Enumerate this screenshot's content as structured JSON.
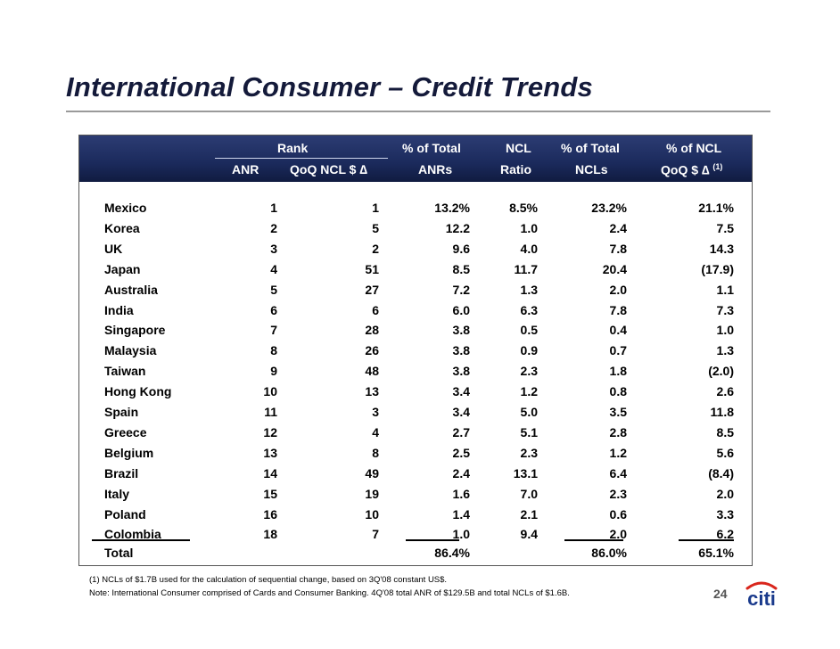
{
  "title": "International Consumer – Credit Trends",
  "header": {
    "rank": "Rank",
    "anr": "ANR",
    "qoq_ncl": "QoQ NCL $ ∆",
    "pct_total_anr_1": "% of Total",
    "pct_total_anr_2": "ANRs",
    "ncl_ratio_1": "NCL",
    "ncl_ratio_2": "Ratio",
    "pct_total_ncl_1": "% of Total",
    "pct_total_ncl_2": "NCLs",
    "pct_ncl_qoq_1": "% of NCL",
    "pct_ncl_qoq_2": "QoQ $ ∆",
    "pct_ncl_qoq_sup": "(1)"
  },
  "rows": [
    {
      "country": "Mexico",
      "anr_rank": "1",
      "qoq_rank": "1",
      "pct_anr": "13.2%",
      "ncl_ratio": "8.5%",
      "pct_ncl": "23.2%",
      "qoq_pct": "21.1%"
    },
    {
      "country": "Korea",
      "anr_rank": "2",
      "qoq_rank": "5",
      "pct_anr": "12.2",
      "ncl_ratio": "1.0",
      "pct_ncl": "2.4",
      "qoq_pct": "7.5"
    },
    {
      "country": "UK",
      "anr_rank": "3",
      "qoq_rank": "2",
      "pct_anr": "9.6",
      "ncl_ratio": "4.0",
      "pct_ncl": "7.8",
      "qoq_pct": "14.3"
    },
    {
      "country": "Japan",
      "anr_rank": "4",
      "qoq_rank": "51",
      "pct_anr": "8.5",
      "ncl_ratio": "11.7",
      "pct_ncl": "20.4",
      "qoq_pct": "(17.9)"
    },
    {
      "country": "Australia",
      "anr_rank": "5",
      "qoq_rank": "27",
      "pct_anr": "7.2",
      "ncl_ratio": "1.3",
      "pct_ncl": "2.0",
      "qoq_pct": "1.1"
    },
    {
      "country": "India",
      "anr_rank": "6",
      "qoq_rank": "6",
      "pct_anr": "6.0",
      "ncl_ratio": "6.3",
      "pct_ncl": "7.8",
      "qoq_pct": "7.3"
    },
    {
      "country": "Singapore",
      "anr_rank": "7",
      "qoq_rank": "28",
      "pct_anr": "3.8",
      "ncl_ratio": "0.5",
      "pct_ncl": "0.4",
      "qoq_pct": "1.0"
    },
    {
      "country": "Malaysia",
      "anr_rank": "8",
      "qoq_rank": "26",
      "pct_anr": "3.8",
      "ncl_ratio": "0.9",
      "pct_ncl": "0.7",
      "qoq_pct": "1.3"
    },
    {
      "country": "Taiwan",
      "anr_rank": "9",
      "qoq_rank": "48",
      "pct_anr": "3.8",
      "ncl_ratio": "2.3",
      "pct_ncl": "1.8",
      "qoq_pct": "(2.0)"
    },
    {
      "country": "Hong Kong",
      "anr_rank": "10",
      "qoq_rank": "13",
      "pct_anr": "3.4",
      "ncl_ratio": "1.2",
      "pct_ncl": "0.8",
      "qoq_pct": "2.6"
    },
    {
      "country": "Spain",
      "anr_rank": "11",
      "qoq_rank": "3",
      "pct_anr": "3.4",
      "ncl_ratio": "5.0",
      "pct_ncl": "3.5",
      "qoq_pct": "11.8"
    },
    {
      "country": "Greece",
      "anr_rank": "12",
      "qoq_rank": "4",
      "pct_anr": "2.7",
      "ncl_ratio": "5.1",
      "pct_ncl": "2.8",
      "qoq_pct": "8.5"
    },
    {
      "country": "Belgium",
      "anr_rank": "13",
      "qoq_rank": "8",
      "pct_anr": "2.5",
      "ncl_ratio": "2.3",
      "pct_ncl": "1.2",
      "qoq_pct": "5.6"
    },
    {
      "country": "Brazil",
      "anr_rank": "14",
      "qoq_rank": "49",
      "pct_anr": "2.4",
      "ncl_ratio": "13.1",
      "pct_ncl": "6.4",
      "qoq_pct": "(8.4)"
    },
    {
      "country": "Italy",
      "anr_rank": "15",
      "qoq_rank": "19",
      "pct_anr": "1.6",
      "ncl_ratio": "7.0",
      "pct_ncl": "2.3",
      "qoq_pct": "2.0"
    },
    {
      "country": "Poland",
      "anr_rank": "16",
      "qoq_rank": "10",
      "pct_anr": "1.4",
      "ncl_ratio": "2.1",
      "pct_ncl": "0.6",
      "qoq_pct": "3.3"
    },
    {
      "country": "Colombia",
      "anr_rank": "18",
      "qoq_rank": "7",
      "pct_anr": "1.0",
      "ncl_ratio": "9.4",
      "pct_ncl": "2.0",
      "qoq_pct": "6.2"
    }
  ],
  "total": {
    "label": "Total",
    "pct_anr": "86.4%",
    "pct_ncl": "86.0%",
    "qoq_pct": "65.1%"
  },
  "footnotes": [
    "(1) NCLs of $1.7B used for the calculation of sequential change, based on 3Q'08 constant US$.",
    "Note: International Consumer comprised of Cards and Consumer Banking.  4Q'08 total ANR of $129.5B and total NCLs of $1.6B."
  ],
  "page_number": "24",
  "logo_text": "citi",
  "colors": {
    "header_bg": "#1b2a5c",
    "title": "#141a3a",
    "logo_red": "#d9261c",
    "logo_blue": "#1a3a8c"
  }
}
